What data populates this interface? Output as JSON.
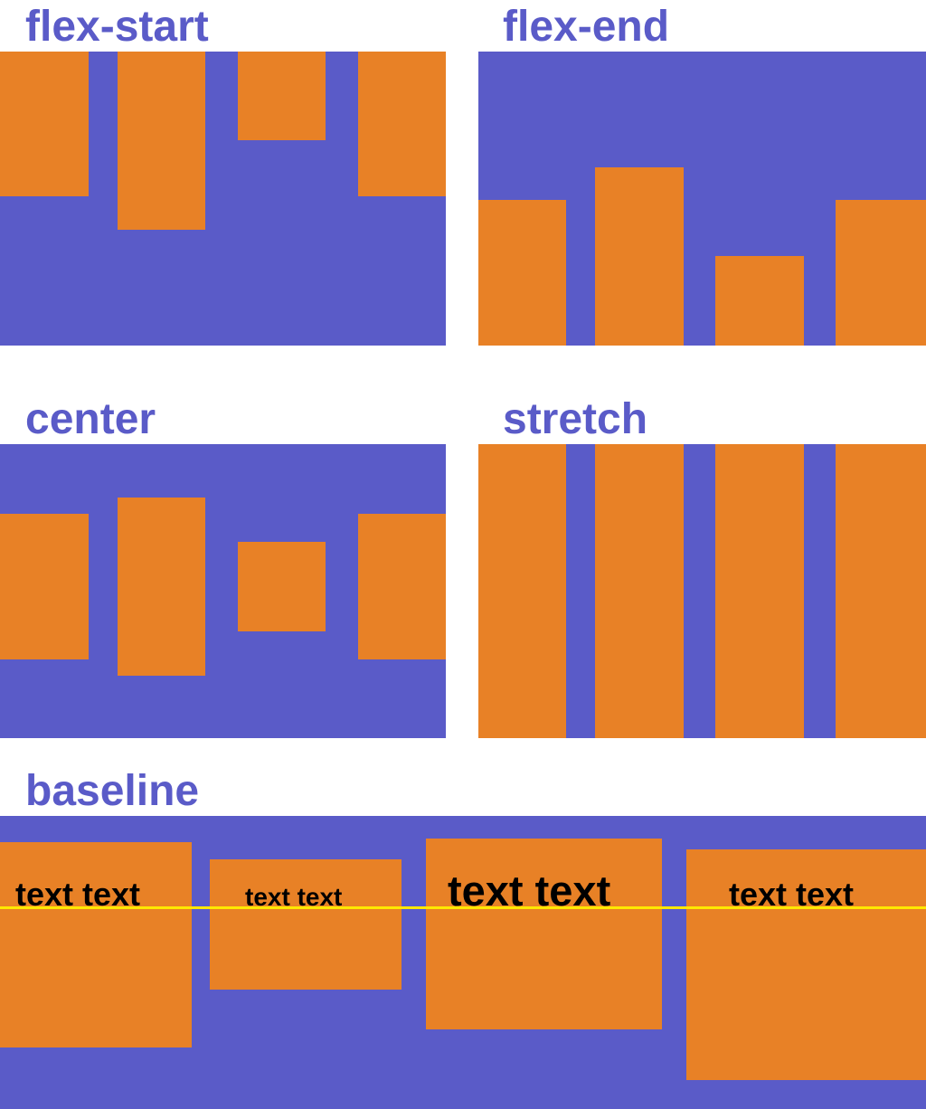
{
  "colors": {
    "container": "#5a5bc8",
    "item": "#e88126",
    "text": "#000000",
    "baseline": "#ffe800",
    "title": "#5a5bc8"
  },
  "sections": {
    "flex_start": {
      "title": "flex-start"
    },
    "flex_end": {
      "title": "flex-end"
    },
    "center": {
      "title": "center"
    },
    "stretch": {
      "title": "stretch"
    },
    "baseline": {
      "title": "baseline",
      "items": [
        {
          "text": "text text"
        },
        {
          "text": "text text"
        },
        {
          "text": "text text"
        },
        {
          "text": "text text"
        }
      ]
    }
  }
}
